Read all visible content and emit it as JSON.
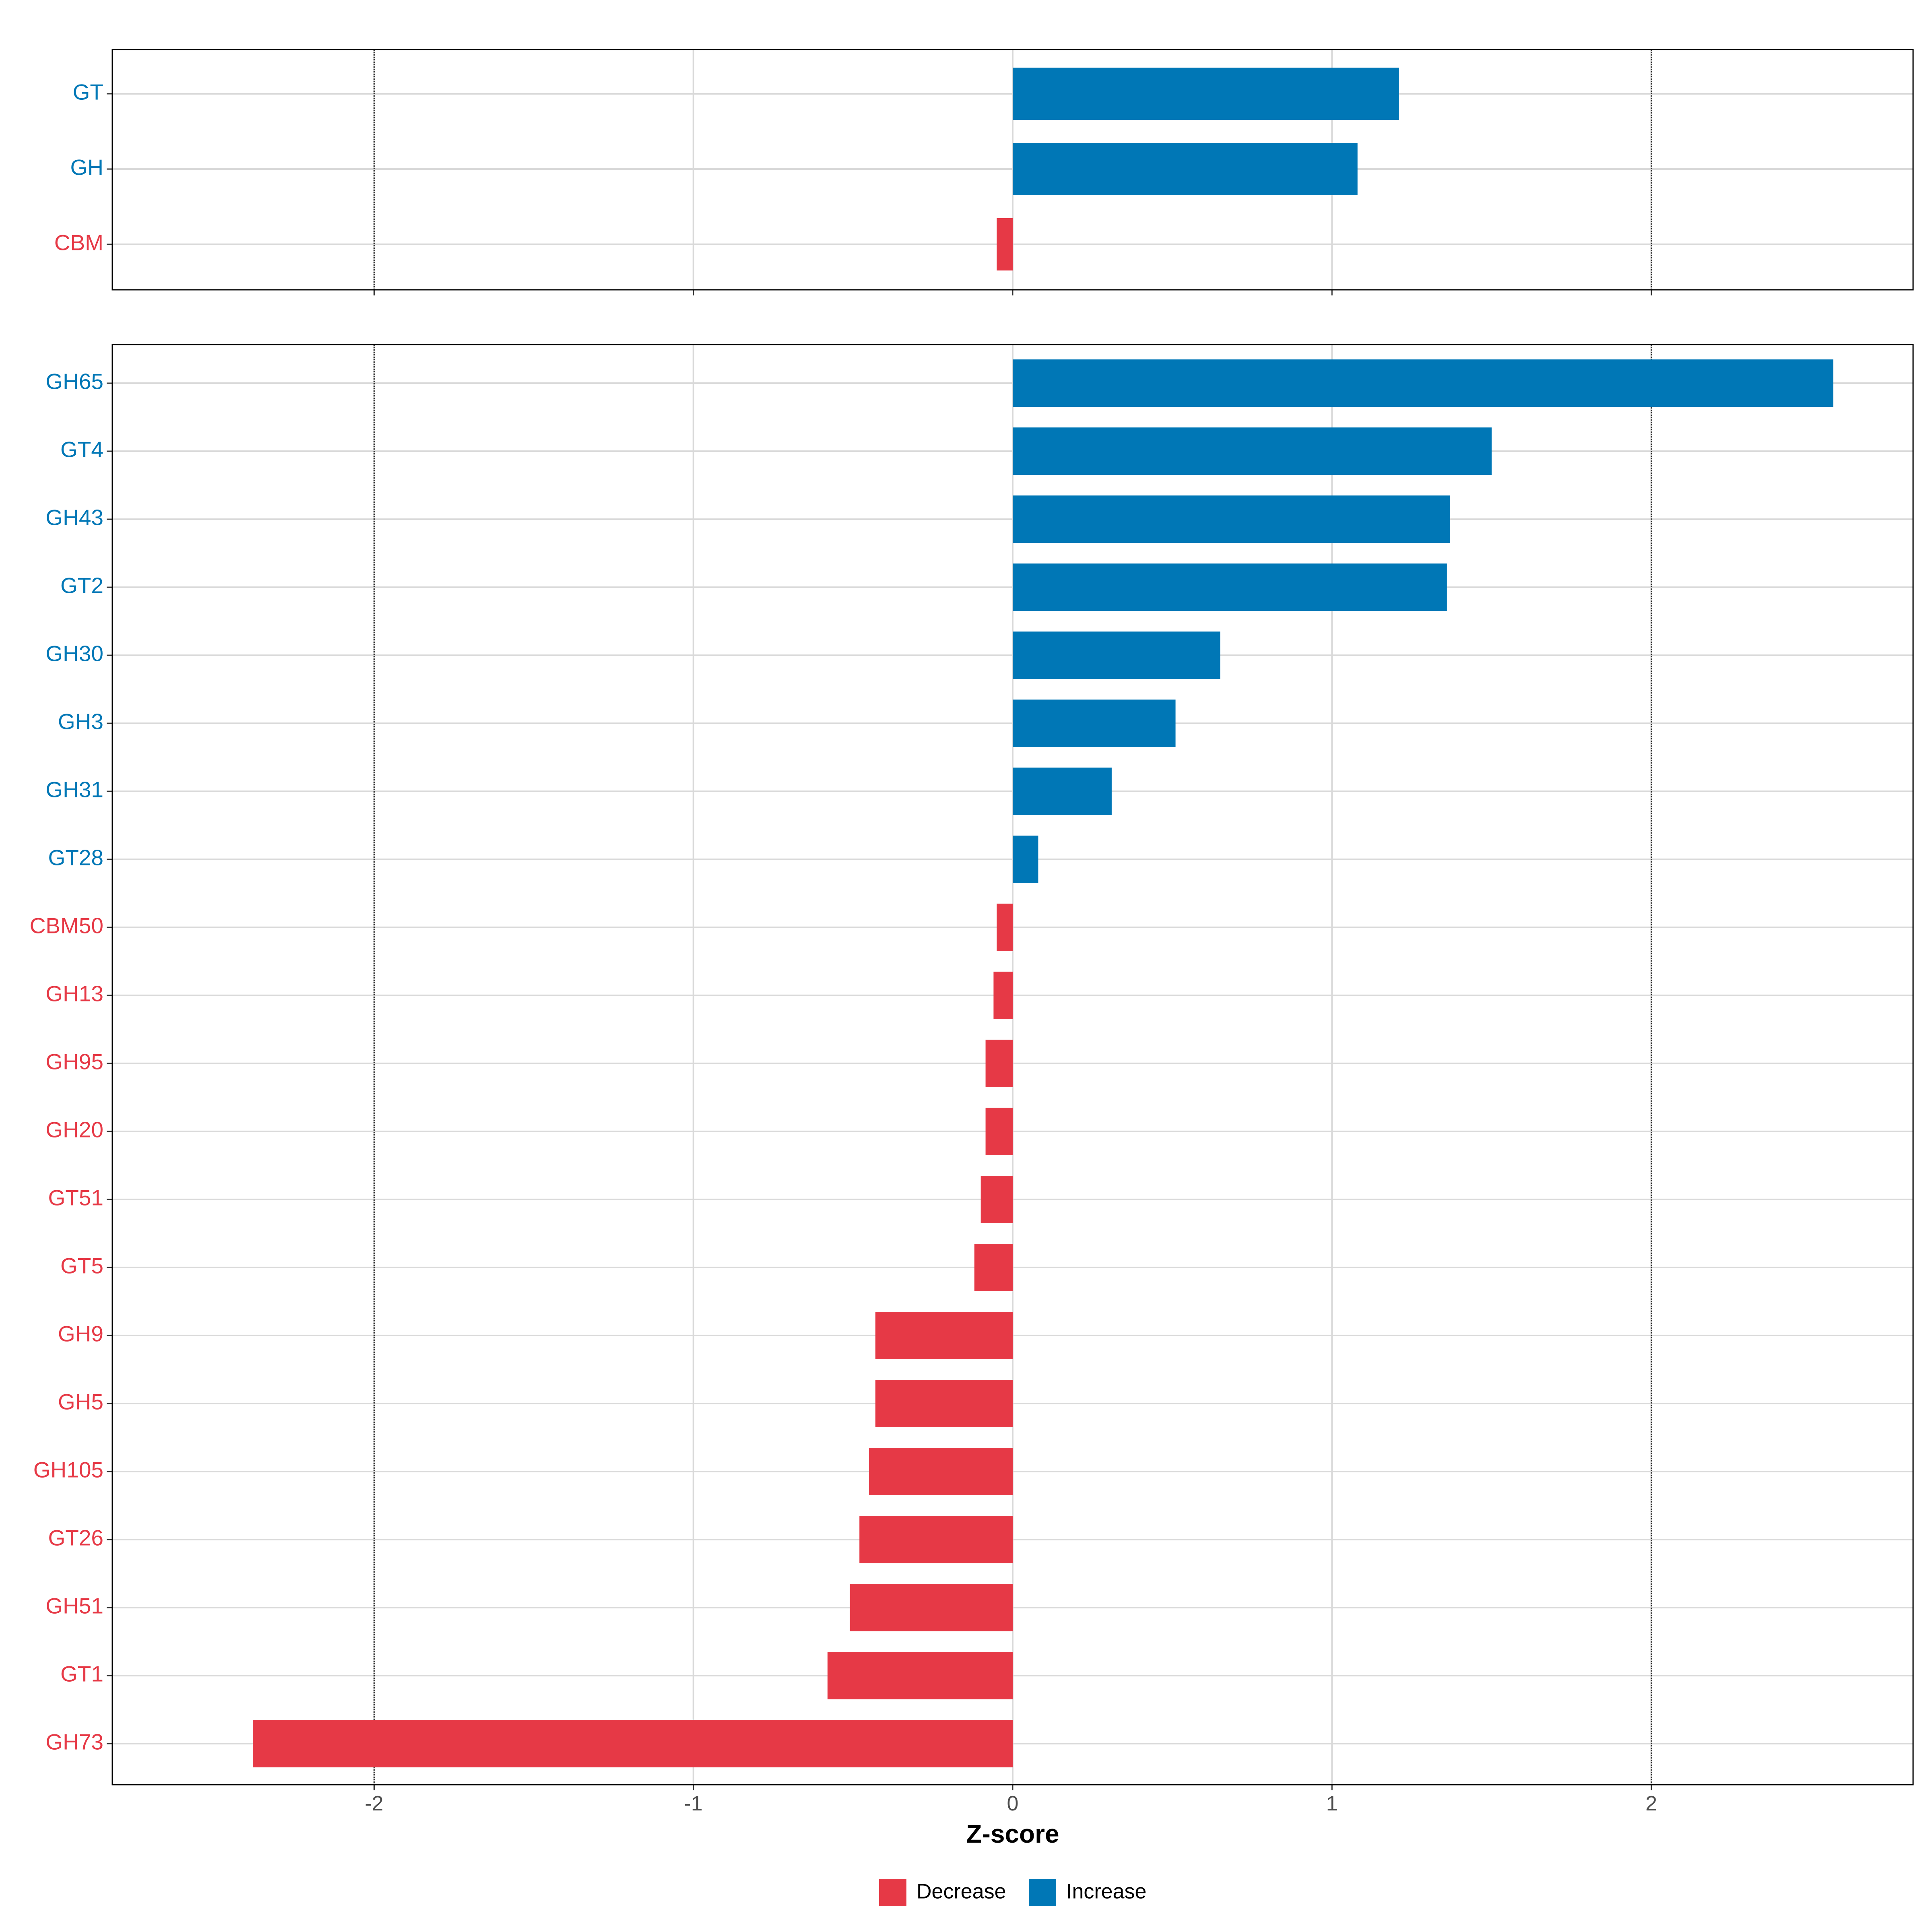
{
  "chart_data": {
    "type": "bar",
    "orientation": "horizontal",
    "xlabel": "Z-score",
    "xlim": [
      -2.82,
      2.82
    ],
    "x_ticks": [
      -2,
      -1,
      0,
      1,
      2
    ],
    "x_tick_labels": [
      "-2",
      "-1",
      "0",
      "1",
      "2"
    ],
    "reference_lines": [
      -2,
      2
    ],
    "grid": true,
    "colors": {
      "Decrease": "#E63946",
      "Increase": "#0077B6"
    },
    "legend": {
      "position": "bottom",
      "entries": [
        {
          "label": "Decrease",
          "color": "#E63946"
        },
        {
          "label": "Increase",
          "color": "#0077B6"
        }
      ]
    },
    "panels": [
      {
        "categories": [
          "GT",
          "GH",
          "CBM"
        ],
        "values": [
          1.21,
          1.08,
          -0.05
        ],
        "groups": [
          "Increase",
          "Increase",
          "Decrease"
        ]
      },
      {
        "categories": [
          "GH65",
          "GT4",
          "GH43",
          "GT2",
          "GH30",
          "GH3",
          "GH31",
          "GT28",
          "CBM50",
          "GH13",
          "GH95",
          "GH20",
          "GT51",
          "GT5",
          "GH9",
          "GH5",
          "GH105",
          "GT26",
          "GH51",
          "GT1",
          "GH73"
        ],
        "values": [
          2.57,
          1.5,
          1.37,
          1.36,
          0.65,
          0.51,
          0.31,
          0.08,
          -0.05,
          -0.06,
          -0.085,
          -0.085,
          -0.1,
          -0.12,
          -0.43,
          -0.43,
          -0.45,
          -0.48,
          -0.51,
          -0.58,
          -2.38
        ],
        "groups": [
          "Increase",
          "Increase",
          "Increase",
          "Increase",
          "Increase",
          "Increase",
          "Increase",
          "Increase",
          "Decrease",
          "Decrease",
          "Decrease",
          "Decrease",
          "Decrease",
          "Decrease",
          "Decrease",
          "Decrease",
          "Decrease",
          "Decrease",
          "Decrease",
          "Decrease",
          "Decrease"
        ]
      }
    ]
  }
}
